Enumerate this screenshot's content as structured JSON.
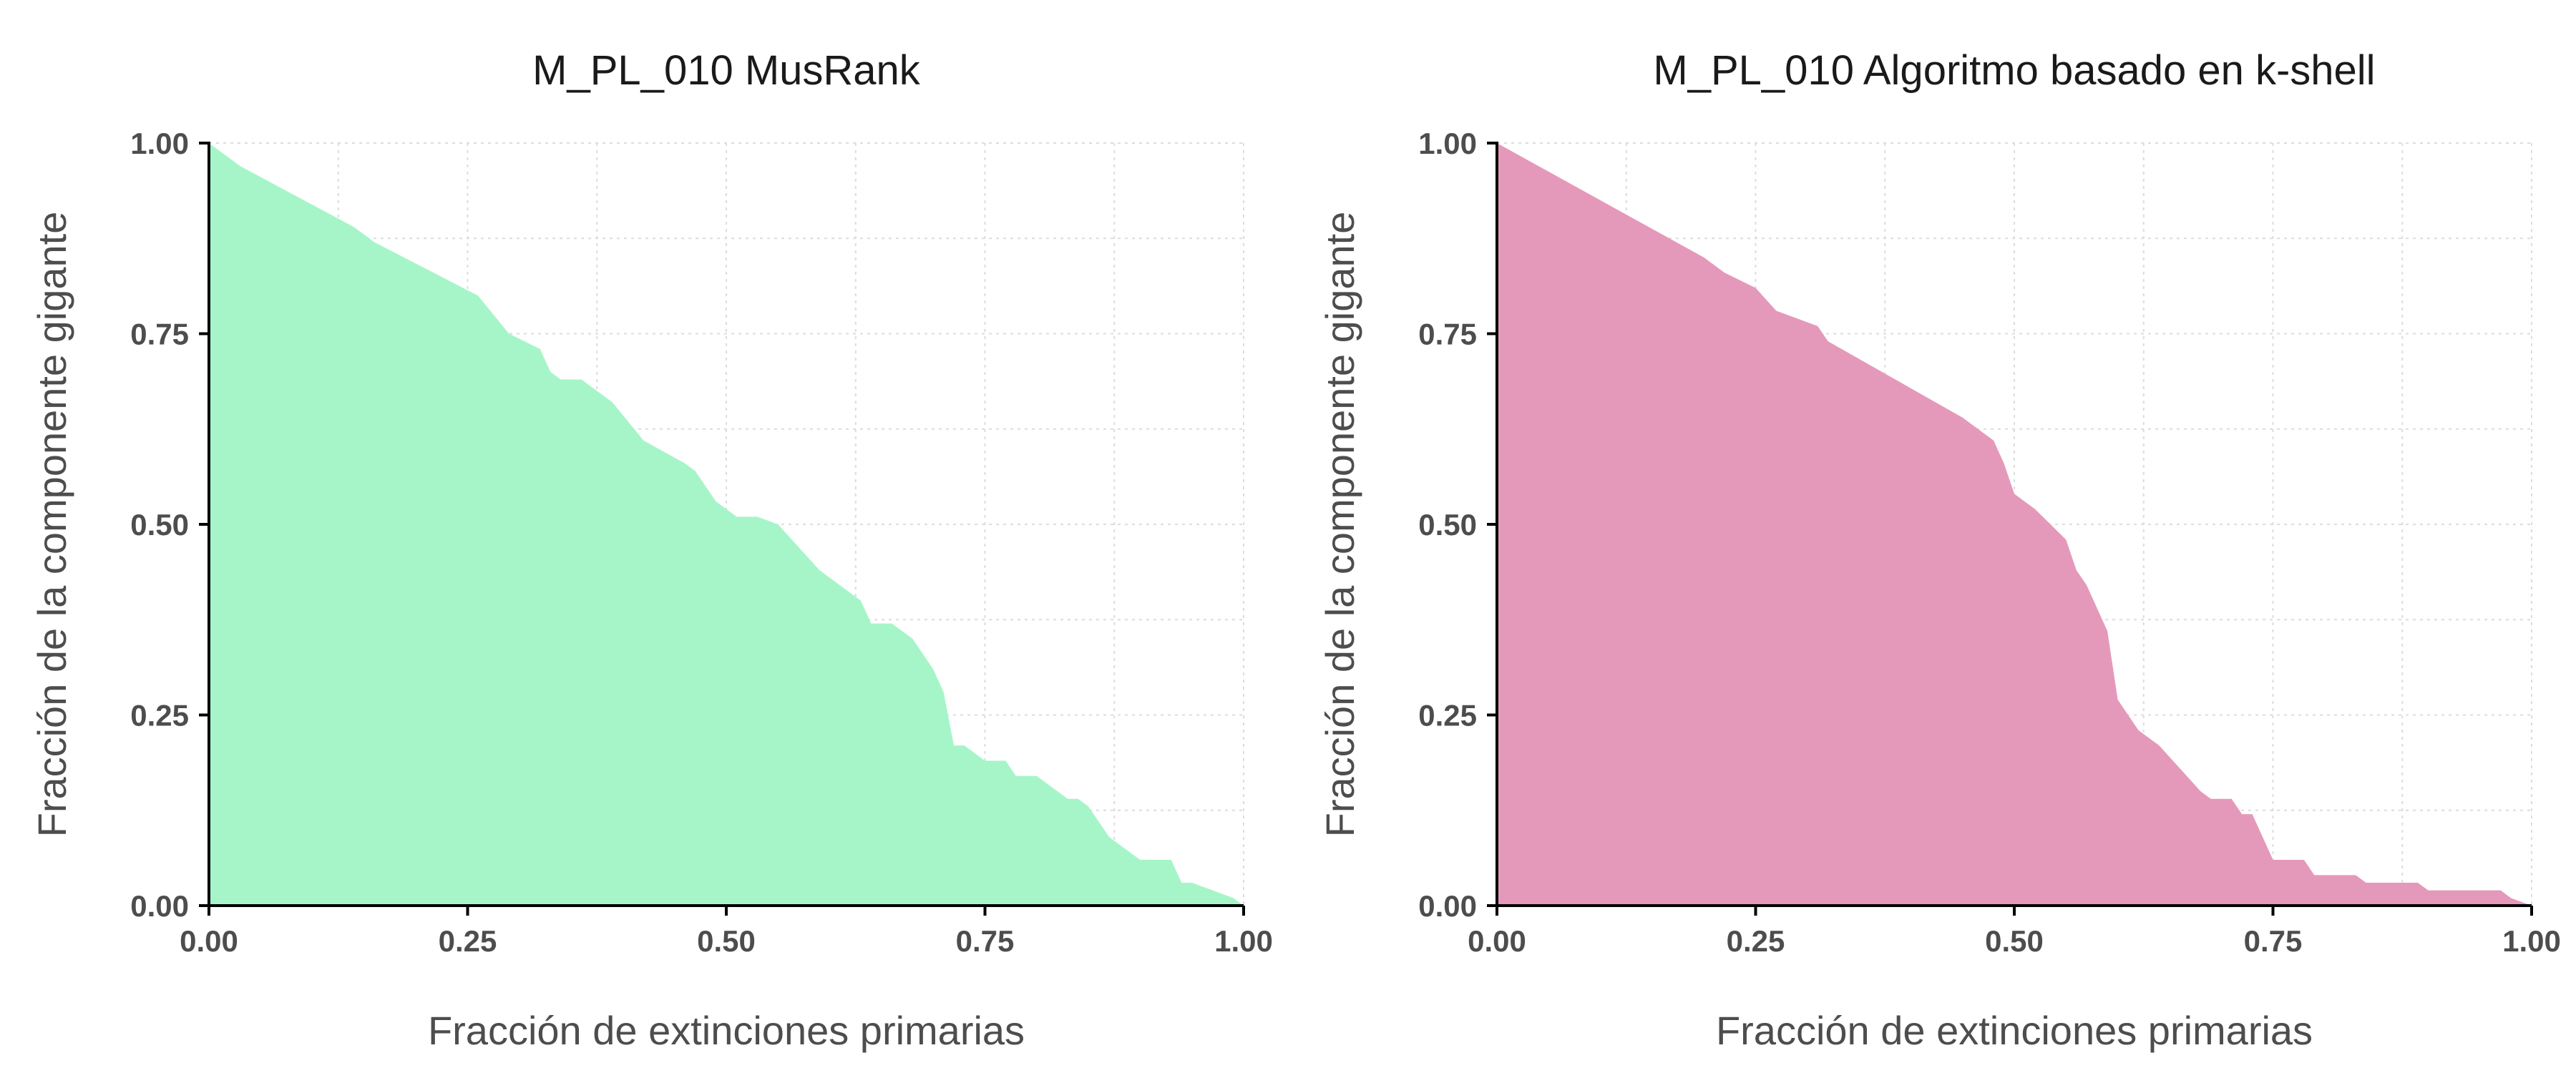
{
  "chart_data": [
    {
      "type": "area",
      "title": "M_PL_010 MusRank",
      "xlabel": "Fracción de extinciones primarias",
      "ylabel": "Fracción de la componente gigante",
      "xlim": [
        0,
        1
      ],
      "ylim": [
        0,
        1
      ],
      "x_ticks": [
        "0.00",
        "0.25",
        "0.50",
        "0.75",
        "1.00"
      ],
      "y_ticks": [
        "0.00",
        "0.25",
        "0.50",
        "0.75",
        "1.00"
      ],
      "grid": true,
      "color": "#a6f5c9",
      "x": [
        0.0,
        0.03,
        0.14,
        0.16,
        0.26,
        0.29,
        0.32,
        0.33,
        0.34,
        0.36,
        0.38,
        0.39,
        0.42,
        0.46,
        0.47,
        0.49,
        0.51,
        0.53,
        0.55,
        0.57,
        0.59,
        0.62,
        0.63,
        0.64,
        0.66,
        0.68,
        0.7,
        0.71,
        0.72,
        0.73,
        0.74,
        0.75,
        0.77,
        0.78,
        0.8,
        0.81,
        0.83,
        0.84,
        0.85,
        0.86,
        0.87,
        0.88,
        0.89,
        0.9,
        0.93,
        0.94,
        0.95,
        0.97,
        0.99,
        1.0
      ],
      "y": [
        1.0,
        0.97,
        0.89,
        0.87,
        0.8,
        0.75,
        0.73,
        0.7,
        0.69,
        0.69,
        0.67,
        0.66,
        0.61,
        0.58,
        0.57,
        0.53,
        0.51,
        0.51,
        0.5,
        0.47,
        0.44,
        0.41,
        0.4,
        0.37,
        0.37,
        0.35,
        0.31,
        0.28,
        0.21,
        0.21,
        0.2,
        0.19,
        0.19,
        0.17,
        0.17,
        0.16,
        0.14,
        0.14,
        0.13,
        0.11,
        0.09,
        0.08,
        0.07,
        0.06,
        0.06,
        0.03,
        0.03,
        0.02,
        0.01,
        0.0
      ]
    },
    {
      "type": "area",
      "title": "M_PL_010 Algoritmo basado en k-shell",
      "xlabel": "Fracción de extinciones primarias",
      "ylabel": "Fracción de la componente gigante",
      "xlim": [
        0,
        1
      ],
      "ylim": [
        0,
        1
      ],
      "x_ticks": [
        "0.00",
        "0.25",
        "0.50",
        "0.75",
        "1.00"
      ],
      "y_ticks": [
        "0.00",
        "0.25",
        "0.50",
        "0.75",
        "1.00"
      ],
      "grid": true,
      "color": "#e599ba",
      "x": [
        0.0,
        0.2,
        0.22,
        0.25,
        0.27,
        0.29,
        0.31,
        0.32,
        0.45,
        0.47,
        0.48,
        0.49,
        0.5,
        0.52,
        0.55,
        0.56,
        0.57,
        0.58,
        0.59,
        0.6,
        0.62,
        0.64,
        0.66,
        0.68,
        0.69,
        0.71,
        0.72,
        0.73,
        0.74,
        0.75,
        0.78,
        0.79,
        0.83,
        0.84,
        0.89,
        0.9,
        0.97,
        0.98,
        1.0
      ],
      "y": [
        1.0,
        0.85,
        0.83,
        0.81,
        0.78,
        0.77,
        0.76,
        0.74,
        0.64,
        0.62,
        0.61,
        0.58,
        0.54,
        0.52,
        0.48,
        0.44,
        0.42,
        0.39,
        0.36,
        0.27,
        0.23,
        0.21,
        0.18,
        0.15,
        0.14,
        0.14,
        0.12,
        0.12,
        0.09,
        0.06,
        0.06,
        0.04,
        0.04,
        0.03,
        0.03,
        0.02,
        0.02,
        0.01,
        0.0
      ]
    }
  ]
}
